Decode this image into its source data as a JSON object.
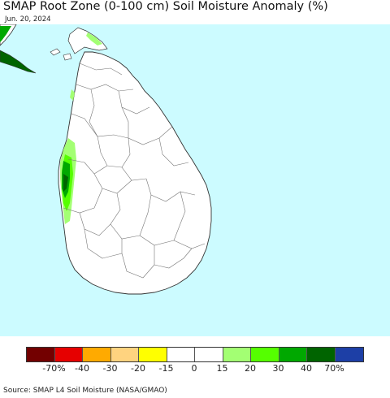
{
  "title": "SMAP Root Zone (0-100 cm) Soil Moisture Anomaly (%)",
  "date": "Jun. 20, 2024",
  "source": "Source: SMAP L4 Soil Moisture (NASA/GMAO)",
  "colors": {
    "ocean": "#ccfbff",
    "land": "#ffffff",
    "border": "#555555"
  },
  "legend": {
    "colors": [
      "#730000",
      "#e60000",
      "#ffaa00",
      "#ffd37f",
      "#ffff00",
      "#ffffff",
      "#ffffff",
      "#a3ff73",
      "#55ff00",
      "#00a800",
      "#006400",
      "#1d3fa6"
    ],
    "labels": [
      "-70%",
      "-40",
      "-30",
      "-20",
      "-15",
      "0",
      "15",
      "20",
      "30",
      "40",
      "70%"
    ]
  }
}
